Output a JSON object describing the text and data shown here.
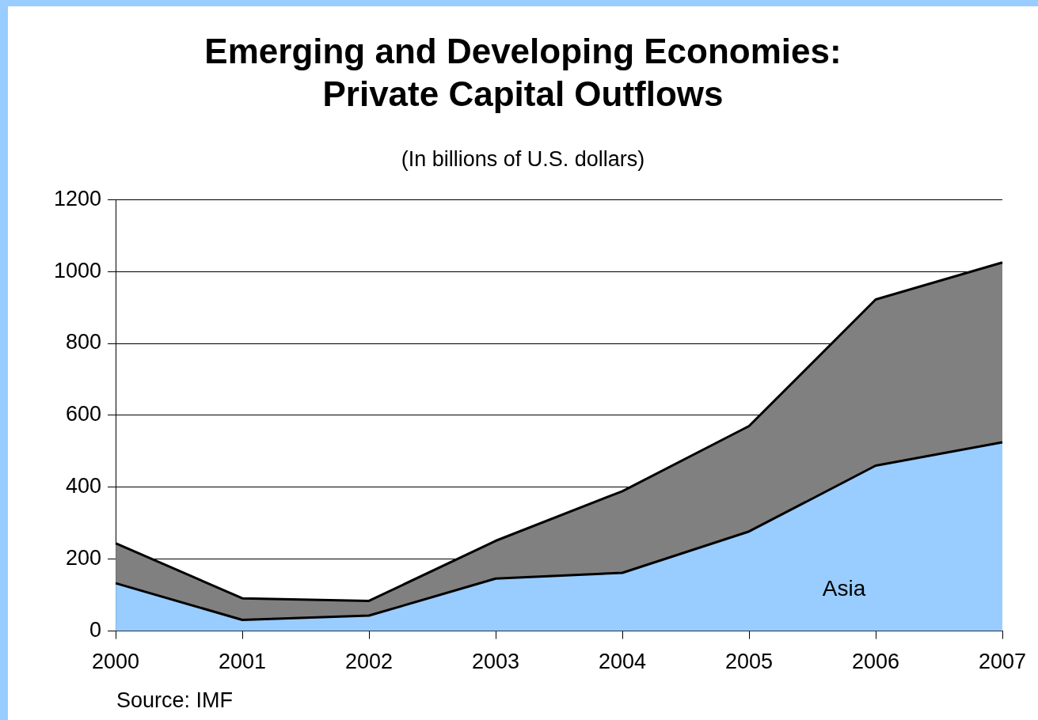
{
  "chart_data": {
    "type": "area",
    "title": "Emerging and Developing Economies:\nPrivate Capital Outflows",
    "subtitle": "(In billions of U.S. dollars)",
    "categories": [
      "2000",
      "2001",
      "2002",
      "2003",
      "2004",
      "2005",
      "2006",
      "2007"
    ],
    "stacked": true,
    "series": [
      {
        "name": "Asia",
        "color": "#99ccff",
        "values": [
          133,
          31,
          43,
          146,
          162,
          277,
          460,
          525
        ]
      },
      {
        "color": "#808080",
        "values": [
          111,
          60,
          41,
          105,
          227,
          293,
          462,
          500
        ]
      }
    ],
    "ylim": [
      0,
      1200
    ],
    "yticks": [
      0,
      200,
      400,
      600,
      800,
      1000,
      1200
    ],
    "grid": "y",
    "legend": false,
    "annotations": [
      "Source: IMF"
    ]
  }
}
